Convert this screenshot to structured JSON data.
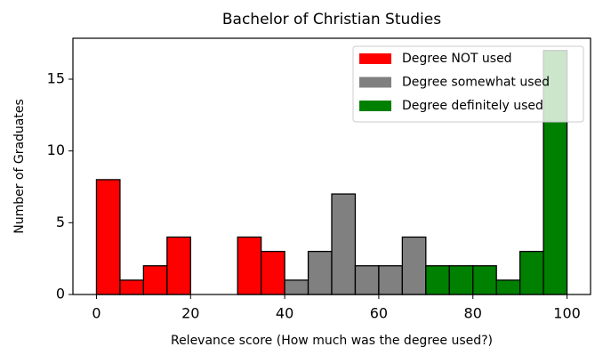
{
  "chart_data": {
    "type": "histogram",
    "title": "Bachelor of Christian Studies",
    "xlabel": "Relevance score (How much was the degree used?)",
    "ylabel": "Number of Graduates",
    "series": [
      {
        "name": "Degree NOT used",
        "color": "#ff0000",
        "bins": [
          0,
          5,
          10,
          15,
          20,
          25,
          30,
          35,
          40
        ],
        "counts": [
          8,
          1,
          2,
          4,
          0,
          0,
          4,
          3
        ]
      },
      {
        "name": "Degree somewhat used",
        "color": "#808080",
        "bins": [
          40,
          45,
          50,
          55,
          60,
          65,
          70
        ],
        "counts": [
          1,
          3,
          7,
          2,
          2,
          4
        ]
      },
      {
        "name": "Degree definitely used",
        "color": "#008000",
        "bins": [
          70,
          75,
          80,
          85,
          90,
          95,
          100
        ],
        "counts": [
          2,
          2,
          2,
          1,
          3,
          17
        ]
      }
    ],
    "xlim": [
      -5,
      105
    ],
    "ylim": [
      0,
      17.85
    ],
    "xticks": [
      0,
      20,
      40,
      60,
      80,
      100
    ],
    "yticks": [
      0,
      5,
      10,
      15
    ],
    "grid": false,
    "legend": "upper right"
  }
}
